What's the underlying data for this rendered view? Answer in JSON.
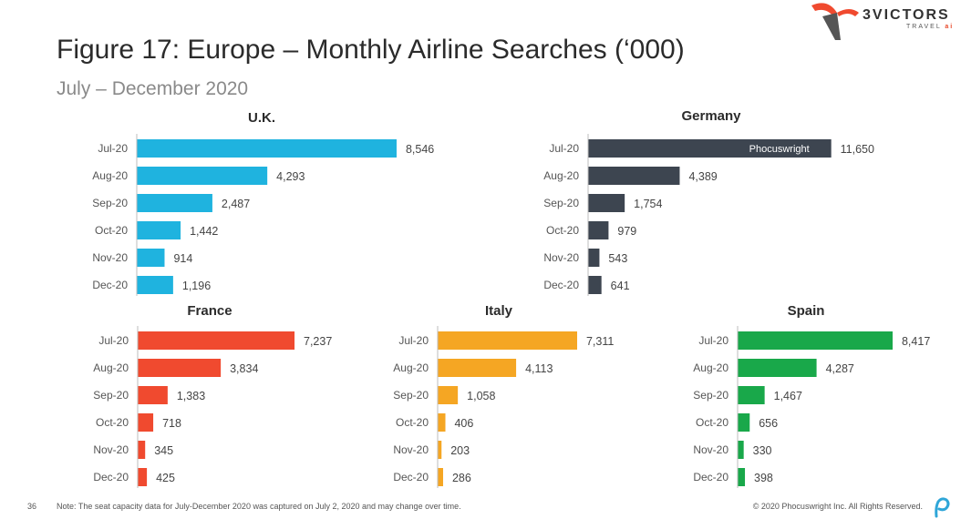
{
  "header": {
    "title": "Figure 17: Europe – Monthly Airline Searches (‘000)",
    "subtitle": "July – December 2020"
  },
  "logo": {
    "name": "3VICTORS",
    "sub": "TRAVEL",
    "ai": "ai"
  },
  "footer": {
    "page_number": "36",
    "note": "Note: The seat capacity data for July-December 2020 was captured on July 2, 2020 and may change over time.",
    "copyright": "© 2020 Phocuswright Inc. All Rights Reserved."
  },
  "watermark": "Phocuswright",
  "chart_data": [
    {
      "type": "bar",
      "title": "U.K.",
      "color": "#1fb3df",
      "categories": [
        "Jul-20",
        "Aug-20",
        "Sep-20",
        "Oct-20",
        "Nov-20",
        "Dec-20"
      ],
      "values": [
        8546,
        4293,
        2487,
        1442,
        914,
        1196
      ],
      "labels": [
        "8,546",
        "4,293",
        "2,487",
        "1,442",
        "914",
        "1,196"
      ]
    },
    {
      "type": "bar",
      "title": "Germany",
      "color": "#3d4550",
      "categories": [
        "Jul-20",
        "Aug-20",
        "Sep-20",
        "Oct-20",
        "Nov-20",
        "Dec-20"
      ],
      "values": [
        11650,
        4389,
        1754,
        979,
        543,
        641
      ],
      "labels": [
        "11,650",
        "4,389",
        "1,754",
        "979",
        "543",
        "641"
      ]
    },
    {
      "type": "bar",
      "title": "France",
      "color": "#f04a2f",
      "categories": [
        "Jul-20",
        "Aug-20",
        "Sep-20",
        "Oct-20",
        "Nov-20",
        "Dec-20"
      ],
      "values": [
        7237,
        3834,
        1383,
        718,
        345,
        425
      ],
      "labels": [
        "7,237",
        "3,834",
        "1,383",
        "718",
        "345",
        "425"
      ]
    },
    {
      "type": "bar",
      "title": "Italy",
      "color": "#f5a623",
      "categories": [
        "Jul-20",
        "Aug-20",
        "Sep-20",
        "Oct-20",
        "Nov-20",
        "Dec-20"
      ],
      "values": [
        7311,
        4113,
        1058,
        406,
        203,
        286
      ],
      "labels": [
        "7,311",
        "4,113",
        "1,058",
        "406",
        "203",
        "286"
      ]
    },
    {
      "type": "bar",
      "title": "Spain",
      "color": "#19a84a",
      "categories": [
        "Jul-20",
        "Aug-20",
        "Sep-20",
        "Oct-20",
        "Nov-20",
        "Dec-20"
      ],
      "values": [
        8417,
        4287,
        1467,
        656,
        330,
        398
      ],
      "labels": [
        "8,417",
        "4,287",
        "1,467",
        "656",
        "330",
        "398"
      ]
    }
  ]
}
